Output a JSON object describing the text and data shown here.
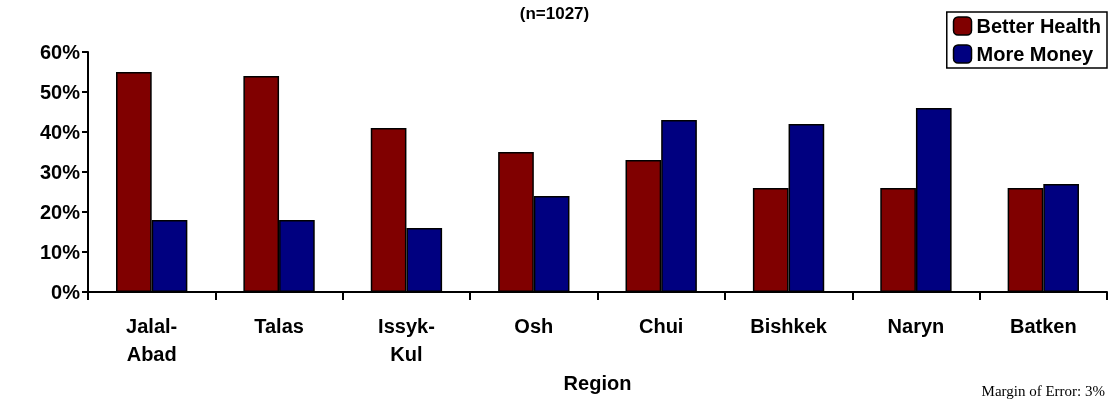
{
  "chart_data": {
    "type": "bar",
    "title": "(n=1027)",
    "xlabel": "Region",
    "categories": [
      "Jalal-Abad",
      "Talas",
      "Issyk-Kul",
      "Osh",
      "Chui",
      "Bishkek",
      "Naryn",
      "Batken"
    ],
    "series": [
      {
        "name": "Better Health",
        "color": "#800000",
        "values": [
          55,
          54,
          41,
          35,
          33,
          26,
          26,
          26
        ]
      },
      {
        "name": "More Money",
        "color": "#000080",
        "values": [
          18,
          18,
          16,
          24,
          43,
          42,
          46,
          27
        ]
      }
    ],
    "ylim": [
      0,
      60
    ],
    "yticks": [
      {
        "value": 0,
        "label": "0%"
      },
      {
        "value": 10,
        "label": "10%"
      },
      {
        "value": 20,
        "label": "20%"
      },
      {
        "value": 30,
        "label": "30%"
      },
      {
        "value": 40,
        "label": "40%"
      },
      {
        "value": 50,
        "label": "50%"
      },
      {
        "value": 60,
        "label": "60%"
      }
    ],
    "grid": false,
    "legend": "top right",
    "annotations": [
      "Margin of Error: 3%"
    ]
  }
}
